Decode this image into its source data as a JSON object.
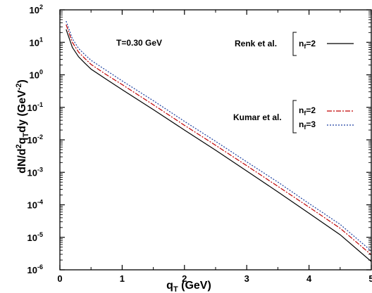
{
  "chart_data": {
    "type": "line",
    "title": "",
    "annotation": "T=0.30 GeV",
    "xlabel": {
      "main": "q",
      "sub": "T",
      "rest": " (GeV)"
    },
    "ylabel": {
      "p1": "dN/d",
      "sup1": "2",
      "p2": "q",
      "sub1": "T",
      "p3": "dy (GeV",
      "sup2": "-2",
      "p4": ")"
    },
    "xlim": [
      0,
      5
    ],
    "ylim_log10": [
      -6,
      2
    ],
    "log_y": true,
    "grid": false,
    "x_ticks": [
      {
        "value": 0,
        "label": "0"
      },
      {
        "value": 1,
        "label": "1"
      },
      {
        "value": 2,
        "label": "2"
      },
      {
        "value": 3,
        "label": "3"
      },
      {
        "value": 4,
        "label": "4"
      },
      {
        "value": 5,
        "label": "5"
      }
    ],
    "y_ticks": [
      {
        "exp": -6,
        "base": "10",
        "sup": "-6"
      },
      {
        "exp": -5,
        "base": "10",
        "sup": "-5"
      },
      {
        "exp": -4,
        "base": "10",
        "sup": "-4"
      },
      {
        "exp": -3,
        "base": "10",
        "sup": "-3"
      },
      {
        "exp": -2,
        "base": "10",
        "sup": "-2"
      },
      {
        "exp": -1,
        "base": "10",
        "sup": "-1"
      },
      {
        "exp": 0,
        "base": "10",
        "sup": "0"
      },
      {
        "exp": 1,
        "base": "10",
        "sup": "1"
      },
      {
        "exp": 2,
        "base": "10",
        "sup": "2"
      }
    ],
    "legend_groups": [
      {
        "label": "Renk et al.",
        "entries": [
          {
            "series": 0,
            "n": "n",
            "sub": "f",
            "rest": "=2"
          }
        ]
      },
      {
        "label": "Kumar et al.",
        "entries": [
          {
            "series": 1,
            "n": "n",
            "sub": "f",
            "rest": "=2"
          },
          {
            "series": 2,
            "n": "n",
            "sub": "f",
            "rest": "=3"
          }
        ]
      }
    ],
    "series": [
      {
        "color": "#000000",
        "dash": "",
        "x": [
          0.1,
          0.2,
          0.3,
          0.4,
          0.5,
          0.75,
          1.0,
          1.5,
          2.0,
          2.5,
          3.0,
          3.5,
          4.0,
          4.5,
          5.0
        ],
        "y": [
          25,
          7,
          3.6,
          2.3,
          1.5,
          0.72,
          0.35,
          0.085,
          0.02,
          0.0048,
          0.0011,
          0.00025,
          5.5e-05,
          1.2e-05,
          1.8e-06
        ]
      },
      {
        "color": "#c00000",
        "dash": "7,2,2,2",
        "x": [
          0.1,
          0.2,
          0.3,
          0.4,
          0.5,
          0.75,
          1.0,
          1.5,
          2.0,
          2.5,
          3.0,
          3.5,
          4.0,
          4.5,
          5.0
        ],
        "y": [
          35,
          10,
          5,
          3.2,
          2.1,
          1.0,
          0.5,
          0.12,
          0.028,
          0.0068,
          0.0016,
          0.00037,
          8.5e-05,
          1.9e-05,
          2.9e-06
        ]
      },
      {
        "color": "#1a3fa0",
        "dash": "2,2",
        "x": [
          0.1,
          0.2,
          0.3,
          0.4,
          0.5,
          0.75,
          1.0,
          1.5,
          2.0,
          2.5,
          3.0,
          3.5,
          4.0,
          4.5,
          5.0
        ],
        "y": [
          45,
          13,
          6.5,
          4.2,
          2.8,
          1.35,
          0.65,
          0.16,
          0.037,
          0.009,
          0.0021,
          0.0005,
          0.00011,
          2.5e-05,
          3.8e-06
        ]
      }
    ]
  }
}
